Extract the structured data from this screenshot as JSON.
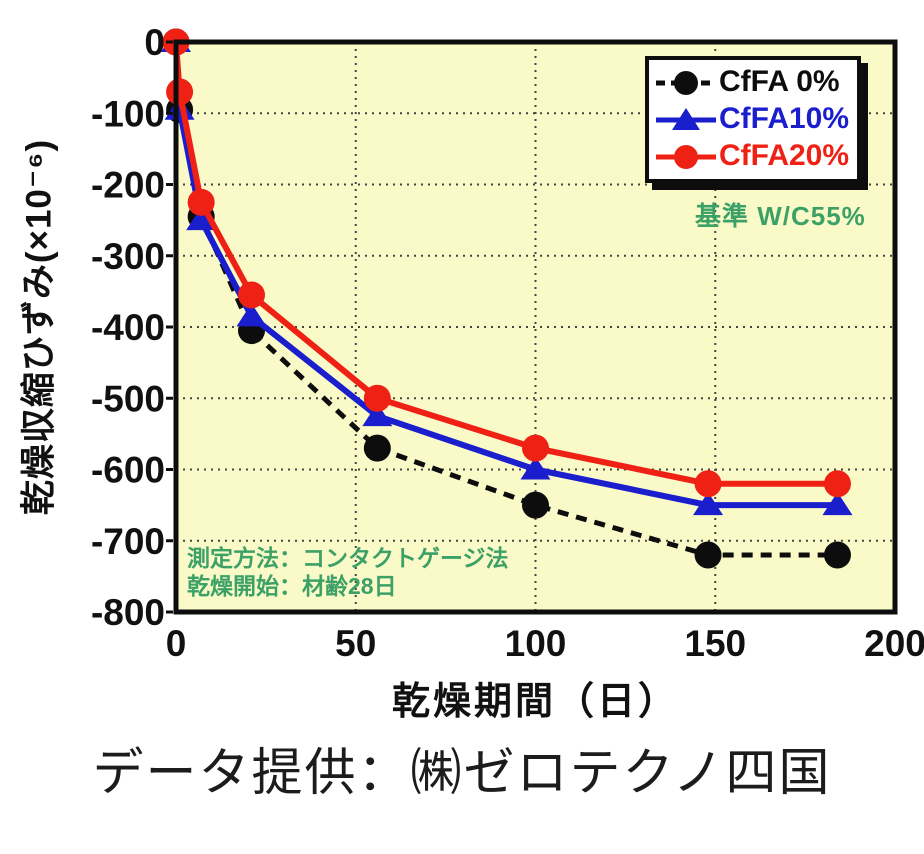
{
  "caption": "データ提供：㈱ゼロテクノ四国",
  "annotations": {
    "reference": "基準 W/C55%",
    "method": "測定方法：コンタクトゲージ法",
    "drying_start": "乾燥開始：材齢28日"
  },
  "colors": {
    "green": "#3da167",
    "black_series": "#0d0d0d",
    "blue_series": "#1a1ecc",
    "red_series": "#ee2114",
    "plot_background": "#fafac9",
    "gridline": "#444444",
    "frame": "#0d0d0d"
  },
  "chart_data": {
    "type": "line",
    "title": "",
    "xlabel": "乾燥期間（日）",
    "ylabel": "乾燥収縮ひずみ(×10⁻⁶)",
    "xlim": [
      0,
      200
    ],
    "ylim": [
      -800,
      0
    ],
    "x_ticks": [
      0,
      50,
      100,
      150,
      200
    ],
    "y_ticks": [
      0,
      -100,
      -200,
      -300,
      -400,
      -500,
      -600,
      -700,
      -800
    ],
    "grid": true,
    "legend_position": "top-right",
    "x": [
      0,
      1,
      7,
      21,
      56,
      100,
      148,
      184
    ],
    "series": [
      {
        "name": "CfFA 0%",
        "color": "#0d0d0d",
        "marker": "circle",
        "line": "dashed",
        "values": [
          0,
          -95,
          -245,
          -405,
          -570,
          -650,
          -720,
          -720
        ]
      },
      {
        "name": "CfFA10%",
        "color": "#1a1ecc",
        "marker": "triangle",
        "line": "solid",
        "values": [
          0,
          -95,
          -250,
          -385,
          -525,
          -600,
          -650,
          -650
        ]
      },
      {
        "name": "CfFA20%",
        "color": "#ee2114",
        "marker": "circle",
        "line": "solid",
        "values": [
          0,
          -70,
          -225,
          -355,
          -500,
          -570,
          -620,
          -620
        ]
      }
    ]
  }
}
